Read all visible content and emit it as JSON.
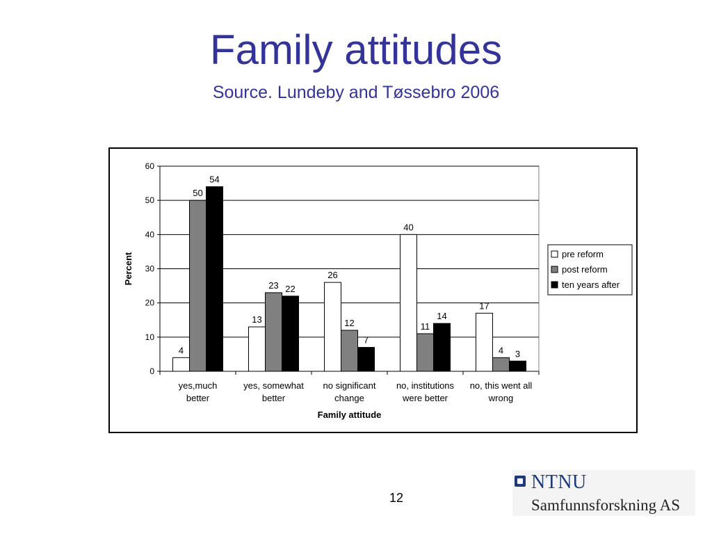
{
  "slide": {
    "title": "Family attitudes",
    "subtitle": "Source. Lundeby and Tøssebro 2006",
    "page_number": "12",
    "logo": {
      "name": "NTNU",
      "subtitle": "Samfunnsforskning AS"
    }
  },
  "chart_data": {
    "type": "bar",
    "title": "",
    "xlabel": "Family attitude",
    "ylabel": "Percent",
    "ylim": [
      0,
      60
    ],
    "yticks": [
      0,
      10,
      20,
      30,
      40,
      50,
      60
    ],
    "grid": true,
    "legend_position": "right",
    "categories": [
      [
        "yes,much",
        "better"
      ],
      [
        "yes, somewhat",
        "better"
      ],
      [
        "no significant",
        "change"
      ],
      [
        "no, institutions",
        "were better"
      ],
      [
        "no, this went all",
        "wrong"
      ]
    ],
    "series": [
      {
        "name": "pre reform",
        "color": "#ffffff",
        "values": [
          4,
          13,
          26,
          40,
          17
        ]
      },
      {
        "name": "post reform",
        "color": "#808080",
        "values": [
          50,
          23,
          12,
          11,
          4
        ]
      },
      {
        "name": "ten years after",
        "color": "#000000",
        "values": [
          54,
          22,
          7,
          14,
          3
        ]
      }
    ]
  }
}
